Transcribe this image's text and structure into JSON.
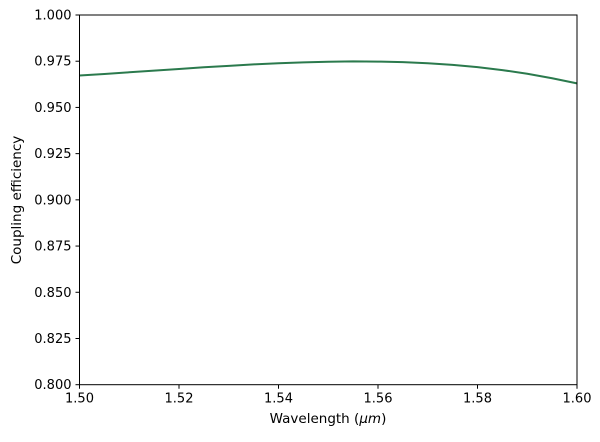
{
  "figure": {
    "background": "#ffffff",
    "frame_color": "#000000",
    "text_color": "#000000"
  },
  "chart_data": {
    "type": "line",
    "title": "",
    "xlabel": "Wavelength (μm)",
    "xlabel_parts": {
      "prefix": "Wavelength (",
      "italic": "μm",
      "suffix": ")"
    },
    "ylabel": "Coupling efficiency",
    "xlim": [
      1.5,
      1.6
    ],
    "ylim": [
      0.8,
      1.0
    ],
    "xticks": [
      "1.50",
      "1.52",
      "1.54",
      "1.56",
      "1.58",
      "1.60"
    ],
    "yticks": [
      "1.000",
      "0.975",
      "0.950",
      "0.925",
      "0.900",
      "0.875",
      "0.850",
      "0.825",
      "0.800"
    ],
    "grid": false,
    "legend": "none",
    "line_color": "#2b7a4d",
    "series": [
      {
        "name": "coupling-efficiency-curve",
        "x": [
          1.5,
          1.505,
          1.51,
          1.515,
          1.52,
          1.525,
          1.53,
          1.535,
          1.54,
          1.545,
          1.55,
          1.555,
          1.56,
          1.565,
          1.57,
          1.575,
          1.58,
          1.585,
          1.59,
          1.595,
          1.6
        ],
        "y": [
          0.9673,
          0.9681,
          0.969,
          0.9699,
          0.9708,
          0.9717,
          0.9725,
          0.9733,
          0.9739,
          0.9744,
          0.9747,
          0.9749,
          0.9748,
          0.9745,
          0.9739,
          0.973,
          0.9718,
          0.9702,
          0.9682,
          0.9658,
          0.963
        ]
      }
    ]
  }
}
